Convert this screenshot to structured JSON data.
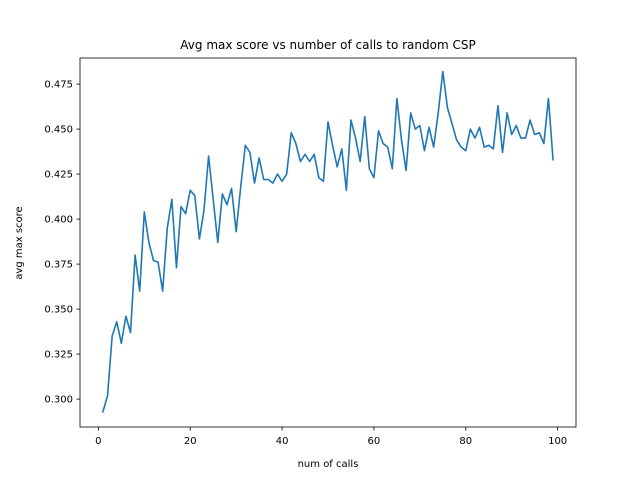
{
  "chart_data": {
    "type": "line",
    "title": "Avg max score vs number of calls to random CSP",
    "xlabel": "num of calls",
    "ylabel": "avg max score",
    "xlim": [
      -4,
      104
    ],
    "ylim": [
      0.2845,
      0.4895
    ],
    "xticks": [
      0,
      20,
      40,
      60,
      80,
      100
    ],
    "yticks": [
      0.3,
      0.325,
      0.35,
      0.375,
      0.4,
      0.425,
      0.45,
      0.475
    ],
    "ytick_labels": [
      "0.300",
      "0.325",
      "0.350",
      "0.375",
      "0.400",
      "0.425",
      "0.450",
      "0.475"
    ],
    "xtick_labels": [
      "0",
      "20",
      "40",
      "60",
      "80",
      "100"
    ],
    "grid": false,
    "color": "#1f77b4",
    "series": [
      {
        "x": [
          1,
          2,
          3,
          4,
          5,
          6,
          7,
          8,
          9,
          10,
          11,
          12,
          13,
          14,
          15,
          16,
          17,
          18,
          19,
          20,
          21,
          22,
          23,
          24,
          25,
          26,
          27,
          28,
          29,
          30,
          31,
          32,
          33,
          34,
          35,
          36,
          37,
          38,
          39,
          40,
          41,
          42,
          43,
          44,
          45,
          46,
          47,
          48,
          49,
          50,
          51,
          52,
          53,
          54,
          55,
          56,
          57,
          58,
          59,
          60,
          61,
          62,
          63,
          64,
          65,
          66,
          67,
          68,
          69,
          70,
          71,
          72,
          73,
          74,
          75,
          76,
          77,
          78,
          79,
          80,
          81,
          82,
          83,
          84,
          85,
          86,
          87,
          88,
          89,
          90,
          91,
          92,
          93,
          94,
          95,
          96,
          97,
          98,
          99
        ],
        "values": [
          0.293,
          0.302,
          0.335,
          0.343,
          0.331,
          0.346,
          0.337,
          0.38,
          0.36,
          0.404,
          0.387,
          0.377,
          0.376,
          0.36,
          0.395,
          0.411,
          0.373,
          0.407,
          0.403,
          0.416,
          0.413,
          0.389,
          0.405,
          0.435,
          0.411,
          0.387,
          0.414,
          0.408,
          0.417,
          0.393,
          0.418,
          0.441,
          0.437,
          0.42,
          0.434,
          0.422,
          0.422,
          0.42,
          0.425,
          0.421,
          0.425,
          0.448,
          0.442,
          0.432,
          0.436,
          0.432,
          0.436,
          0.423,
          0.421,
          0.454,
          0.441,
          0.429,
          0.439,
          0.416,
          0.455,
          0.445,
          0.432,
          0.457,
          0.428,
          0.423,
          0.449,
          0.442,
          0.44,
          0.428,
          0.467,
          0.444,
          0.427,
          0.459,
          0.45,
          0.452,
          0.438,
          0.451,
          0.44,
          0.459,
          0.482,
          0.462,
          0.453,
          0.444,
          0.44,
          0.438,
          0.45,
          0.445,
          0.451,
          0.44,
          0.441,
          0.439,
          0.463,
          0.437,
          0.459,
          0.447,
          0.452,
          0.445,
          0.445,
          0.455,
          0.447,
          0.448,
          0.442,
          0.467,
          0.433
        ]
      }
    ]
  }
}
